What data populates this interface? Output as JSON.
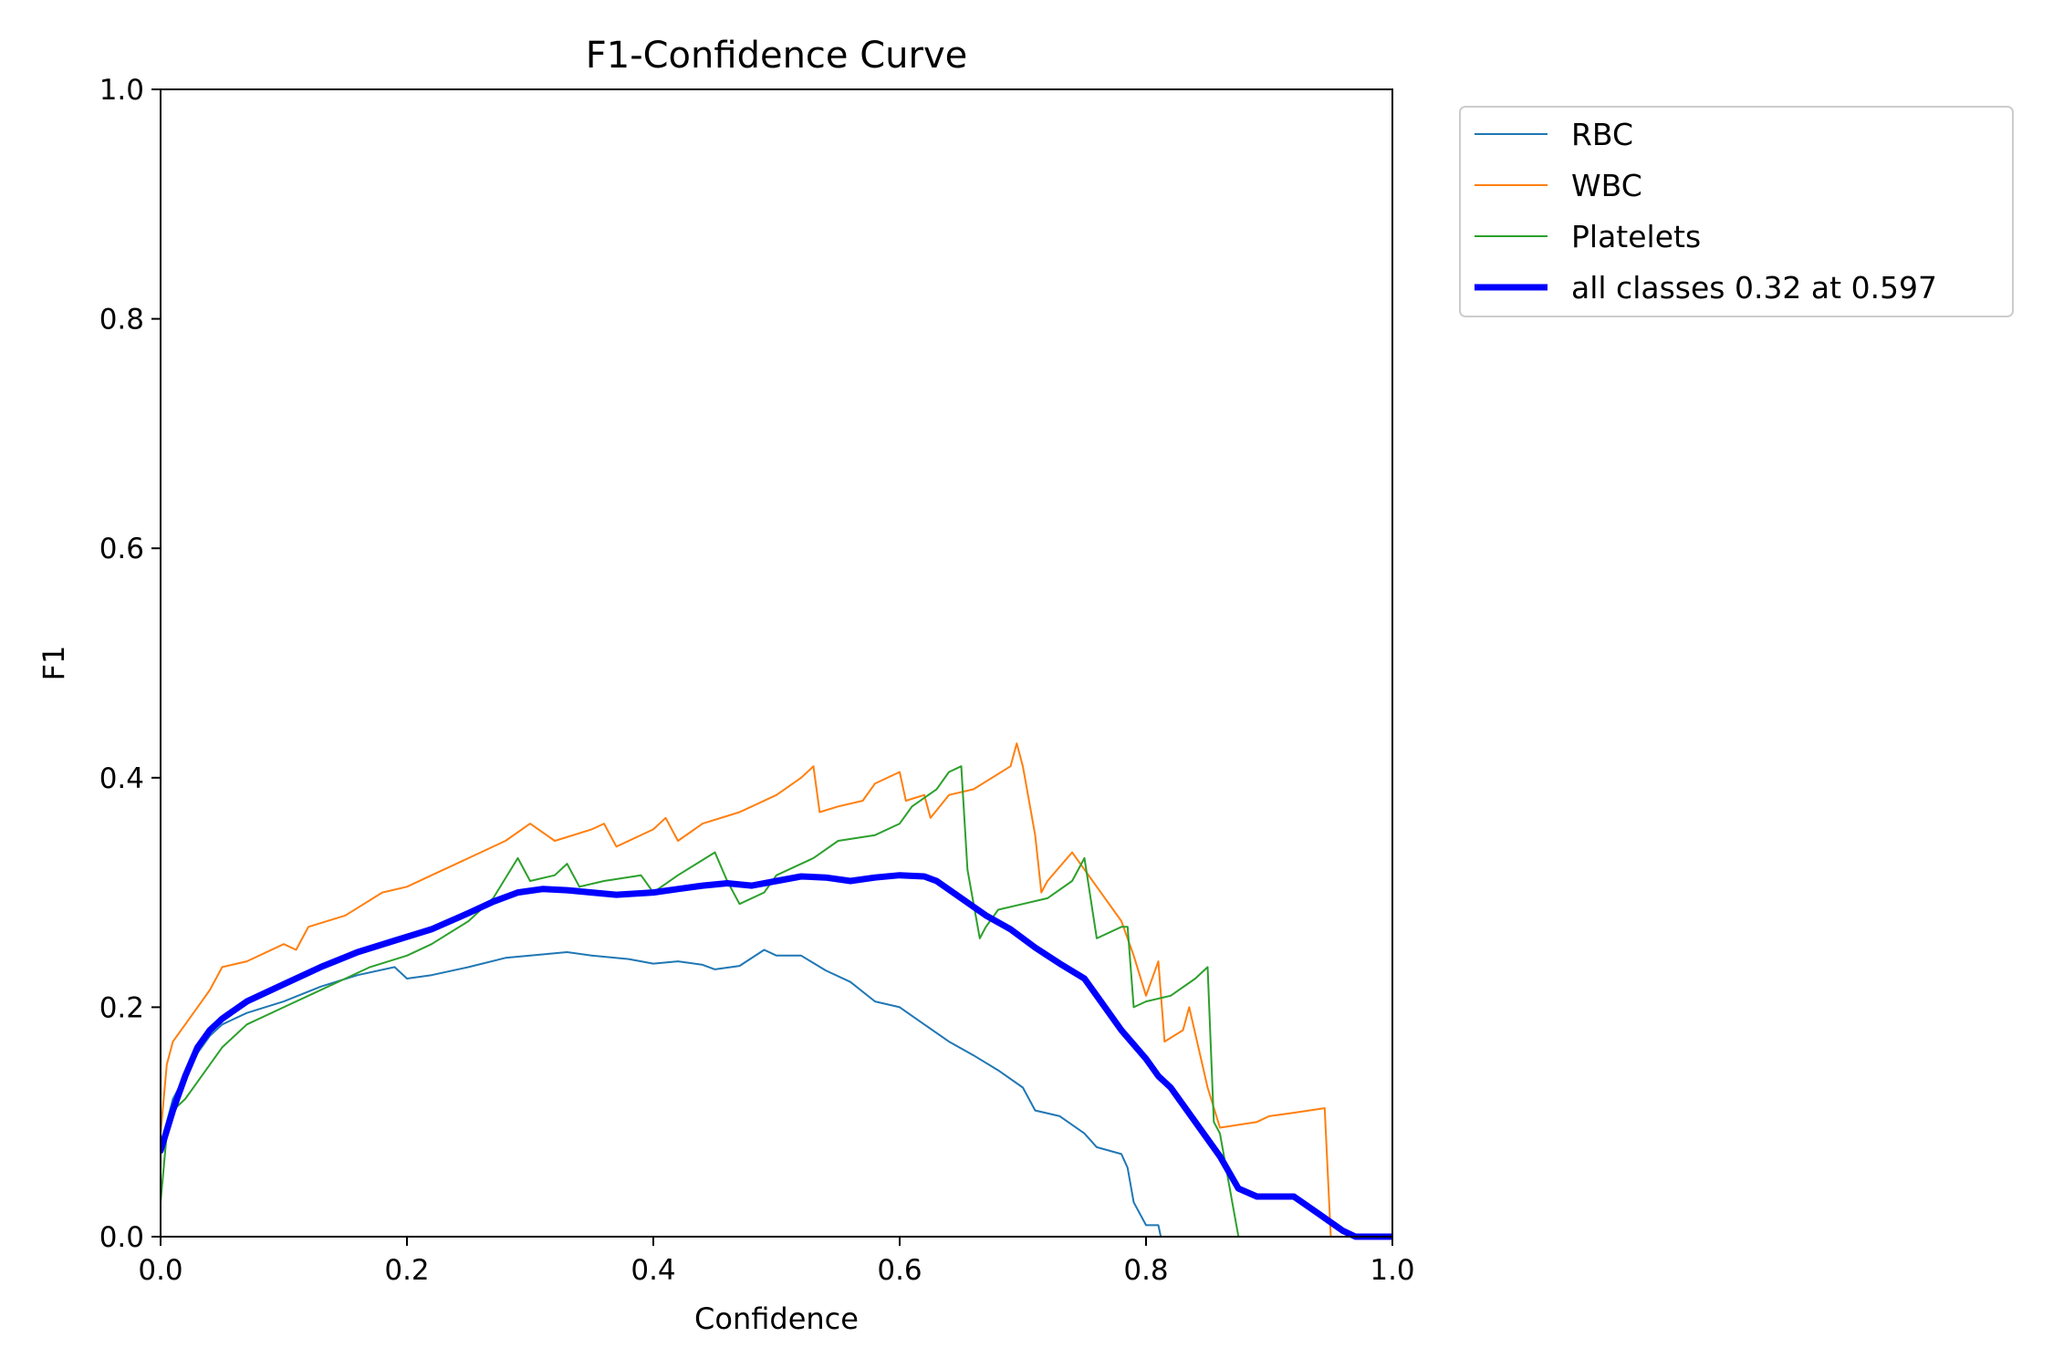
{
  "chart_data": {
    "type": "line",
    "title": "F1-Confidence Curve",
    "xlabel": "Confidence",
    "ylabel": "F1",
    "xlim": [
      0,
      1
    ],
    "ylim": [
      0,
      1
    ],
    "xticks": [
      "0.0",
      "0.2",
      "0.4",
      "0.6",
      "0.8",
      "1.0"
    ],
    "yticks": [
      "0.0",
      "0.2",
      "0.4",
      "0.6",
      "0.8",
      "1.0"
    ],
    "grid": false,
    "legend_position": "outside-top-right",
    "series": [
      {
        "name": "RBC",
        "color": "#1f77b4",
        "linewidth": 2,
        "points": [
          [
            0.0,
            0.08
          ],
          [
            0.005,
            0.1
          ],
          [
            0.01,
            0.12
          ],
          [
            0.02,
            0.14
          ],
          [
            0.03,
            0.16
          ],
          [
            0.04,
            0.175
          ],
          [
            0.05,
            0.185
          ],
          [
            0.07,
            0.195
          ],
          [
            0.1,
            0.205
          ],
          [
            0.13,
            0.218
          ],
          [
            0.16,
            0.228
          ],
          [
            0.19,
            0.235
          ],
          [
            0.2,
            0.225
          ],
          [
            0.22,
            0.228
          ],
          [
            0.25,
            0.235
          ],
          [
            0.28,
            0.243
          ],
          [
            0.3,
            0.245
          ],
          [
            0.33,
            0.248
          ],
          [
            0.35,
            0.245
          ],
          [
            0.38,
            0.242
          ],
          [
            0.4,
            0.238
          ],
          [
            0.42,
            0.24
          ],
          [
            0.44,
            0.237
          ],
          [
            0.45,
            0.233
          ],
          [
            0.47,
            0.236
          ],
          [
            0.49,
            0.25
          ],
          [
            0.5,
            0.245
          ],
          [
            0.52,
            0.245
          ],
          [
            0.54,
            0.232
          ],
          [
            0.56,
            0.222
          ],
          [
            0.58,
            0.205
          ],
          [
            0.6,
            0.2
          ],
          [
            0.62,
            0.185
          ],
          [
            0.64,
            0.17
          ],
          [
            0.66,
            0.158
          ],
          [
            0.68,
            0.145
          ],
          [
            0.7,
            0.13
          ],
          [
            0.71,
            0.11
          ],
          [
            0.73,
            0.105
          ],
          [
            0.75,
            0.09
          ],
          [
            0.76,
            0.078
          ],
          [
            0.78,
            0.072
          ],
          [
            0.785,
            0.06
          ],
          [
            0.79,
            0.03
          ],
          [
            0.8,
            0.01
          ],
          [
            0.81,
            0.01
          ],
          [
            0.812,
            0.0
          ],
          [
            1.0,
            0.0
          ]
        ]
      },
      {
        "name": "WBC",
        "color": "#ff7f0e",
        "linewidth": 2,
        "points": [
          [
            0.0,
            0.09
          ],
          [
            0.005,
            0.15
          ],
          [
            0.01,
            0.17
          ],
          [
            0.02,
            0.185
          ],
          [
            0.03,
            0.2
          ],
          [
            0.04,
            0.215
          ],
          [
            0.05,
            0.235
          ],
          [
            0.07,
            0.24
          ],
          [
            0.1,
            0.255
          ],
          [
            0.11,
            0.25
          ],
          [
            0.12,
            0.27
          ],
          [
            0.15,
            0.28
          ],
          [
            0.18,
            0.3
          ],
          [
            0.2,
            0.305
          ],
          [
            0.22,
            0.315
          ],
          [
            0.25,
            0.33
          ],
          [
            0.28,
            0.345
          ],
          [
            0.3,
            0.36
          ],
          [
            0.32,
            0.345
          ],
          [
            0.35,
            0.355
          ],
          [
            0.36,
            0.36
          ],
          [
            0.37,
            0.34
          ],
          [
            0.4,
            0.355
          ],
          [
            0.41,
            0.365
          ],
          [
            0.42,
            0.345
          ],
          [
            0.44,
            0.36
          ],
          [
            0.47,
            0.37
          ],
          [
            0.5,
            0.385
          ],
          [
            0.52,
            0.4
          ],
          [
            0.53,
            0.41
          ],
          [
            0.535,
            0.37
          ],
          [
            0.55,
            0.375
          ],
          [
            0.57,
            0.38
          ],
          [
            0.58,
            0.395
          ],
          [
            0.6,
            0.405
          ],
          [
            0.605,
            0.38
          ],
          [
            0.62,
            0.385
          ],
          [
            0.625,
            0.365
          ],
          [
            0.64,
            0.385
          ],
          [
            0.66,
            0.39
          ],
          [
            0.69,
            0.41
          ],
          [
            0.695,
            0.43
          ],
          [
            0.7,
            0.41
          ],
          [
            0.71,
            0.35
          ],
          [
            0.715,
            0.3
          ],
          [
            0.72,
            0.31
          ],
          [
            0.74,
            0.335
          ],
          [
            0.75,
            0.32
          ],
          [
            0.77,
            0.29
          ],
          [
            0.78,
            0.275
          ],
          [
            0.79,
            0.245
          ],
          [
            0.8,
            0.21
          ],
          [
            0.81,
            0.24
          ],
          [
            0.815,
            0.17
          ],
          [
            0.83,
            0.18
          ],
          [
            0.835,
            0.2
          ],
          [
            0.85,
            0.13
          ],
          [
            0.86,
            0.095
          ],
          [
            0.89,
            0.1
          ],
          [
            0.9,
            0.105
          ],
          [
            0.92,
            0.108
          ],
          [
            0.945,
            0.112
          ],
          [
            0.95,
            0.0
          ],
          [
            1.0,
            0.0
          ]
        ]
      },
      {
        "name": "Platelets",
        "color": "#2ca02c",
        "linewidth": 2,
        "points": [
          [
            0.0,
            0.03
          ],
          [
            0.005,
            0.09
          ],
          [
            0.01,
            0.11
          ],
          [
            0.02,
            0.12
          ],
          [
            0.03,
            0.135
          ],
          [
            0.04,
            0.15
          ],
          [
            0.05,
            0.165
          ],
          [
            0.07,
            0.185
          ],
          [
            0.1,
            0.2
          ],
          [
            0.12,
            0.21
          ],
          [
            0.15,
            0.225
          ],
          [
            0.17,
            0.235
          ],
          [
            0.2,
            0.245
          ],
          [
            0.22,
            0.255
          ],
          [
            0.25,
            0.275
          ],
          [
            0.27,
            0.295
          ],
          [
            0.29,
            0.33
          ],
          [
            0.3,
            0.31
          ],
          [
            0.32,
            0.315
          ],
          [
            0.33,
            0.325
          ],
          [
            0.34,
            0.305
          ],
          [
            0.36,
            0.31
          ],
          [
            0.39,
            0.315
          ],
          [
            0.4,
            0.3
          ],
          [
            0.42,
            0.315
          ],
          [
            0.45,
            0.335
          ],
          [
            0.46,
            0.31
          ],
          [
            0.47,
            0.29
          ],
          [
            0.49,
            0.3
          ],
          [
            0.5,
            0.315
          ],
          [
            0.53,
            0.33
          ],
          [
            0.55,
            0.345
          ],
          [
            0.58,
            0.35
          ],
          [
            0.6,
            0.36
          ],
          [
            0.61,
            0.375
          ],
          [
            0.63,
            0.39
          ],
          [
            0.64,
            0.405
          ],
          [
            0.65,
            0.41
          ],
          [
            0.655,
            0.32
          ],
          [
            0.665,
            0.26
          ],
          [
            0.67,
            0.27
          ],
          [
            0.68,
            0.285
          ],
          [
            0.7,
            0.29
          ],
          [
            0.72,
            0.295
          ],
          [
            0.74,
            0.31
          ],
          [
            0.75,
            0.33
          ],
          [
            0.76,
            0.26
          ],
          [
            0.78,
            0.27
          ],
          [
            0.785,
            0.27
          ],
          [
            0.79,
            0.2
          ],
          [
            0.8,
            0.205
          ],
          [
            0.82,
            0.21
          ],
          [
            0.84,
            0.225
          ],
          [
            0.85,
            0.235
          ],
          [
            0.855,
            0.1
          ],
          [
            0.86,
            0.09
          ],
          [
            0.87,
            0.03
          ],
          [
            0.875,
            0.0
          ],
          [
            1.0,
            0.0
          ]
        ]
      },
      {
        "name": "all classes 0.32 at 0.597",
        "color": "#0000ff",
        "linewidth": 7,
        "points": [
          [
            0.0,
            0.075
          ],
          [
            0.01,
            0.11
          ],
          [
            0.02,
            0.14
          ],
          [
            0.03,
            0.165
          ],
          [
            0.04,
            0.18
          ],
          [
            0.05,
            0.19
          ],
          [
            0.07,
            0.205
          ],
          [
            0.1,
            0.22
          ],
          [
            0.13,
            0.235
          ],
          [
            0.16,
            0.248
          ],
          [
            0.19,
            0.258
          ],
          [
            0.22,
            0.268
          ],
          [
            0.25,
            0.282
          ],
          [
            0.27,
            0.292
          ],
          [
            0.29,
            0.3
          ],
          [
            0.31,
            0.303
          ],
          [
            0.33,
            0.302
          ],
          [
            0.35,
            0.3
          ],
          [
            0.37,
            0.298
          ],
          [
            0.4,
            0.3
          ],
          [
            0.42,
            0.303
          ],
          [
            0.44,
            0.306
          ],
          [
            0.46,
            0.308
          ],
          [
            0.48,
            0.306
          ],
          [
            0.5,
            0.31
          ],
          [
            0.52,
            0.314
          ],
          [
            0.54,
            0.313
          ],
          [
            0.56,
            0.31
          ],
          [
            0.58,
            0.313
          ],
          [
            0.6,
            0.315
          ],
          [
            0.62,
            0.314
          ],
          [
            0.63,
            0.31
          ],
          [
            0.65,
            0.295
          ],
          [
            0.67,
            0.28
          ],
          [
            0.69,
            0.268
          ],
          [
            0.71,
            0.252
          ],
          [
            0.73,
            0.238
          ],
          [
            0.75,
            0.225
          ],
          [
            0.76,
            0.21
          ],
          [
            0.78,
            0.18
          ],
          [
            0.8,
            0.155
          ],
          [
            0.81,
            0.14
          ],
          [
            0.82,
            0.13
          ],
          [
            0.84,
            0.1
          ],
          [
            0.86,
            0.07
          ],
          [
            0.875,
            0.042
          ],
          [
            0.89,
            0.035
          ],
          [
            0.91,
            0.035
          ],
          [
            0.92,
            0.035
          ],
          [
            0.94,
            0.02
          ],
          [
            0.96,
            0.005
          ],
          [
            0.97,
            0.0
          ],
          [
            1.0,
            0.0
          ]
        ]
      }
    ]
  }
}
